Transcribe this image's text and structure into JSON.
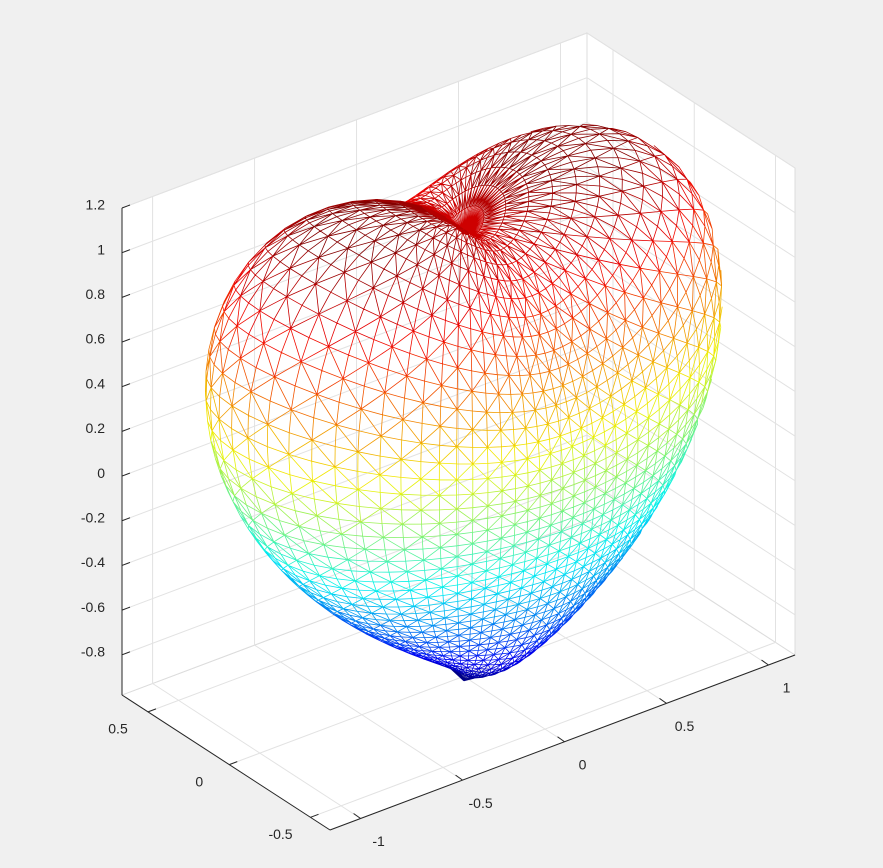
{
  "chart_data": {
    "type": "mesh3d",
    "xlim": [
      -1.15,
      1.13
    ],
    "xticks": [
      -1,
      -0.5,
      0,
      0.5,
      1
    ],
    "ylim": [
      -0.62,
      0.66
    ],
    "yticks": [
      -0.5,
      0,
      0.5
    ],
    "zlim": [
      -0.98,
      1.2
    ],
    "zticks": [
      -0.8,
      -0.6,
      -0.4,
      -0.2,
      0,
      0.2,
      0.4,
      0.6,
      0.8,
      1,
      1.2
    ],
    "grid": true,
    "colormap": "jet"
  }
}
